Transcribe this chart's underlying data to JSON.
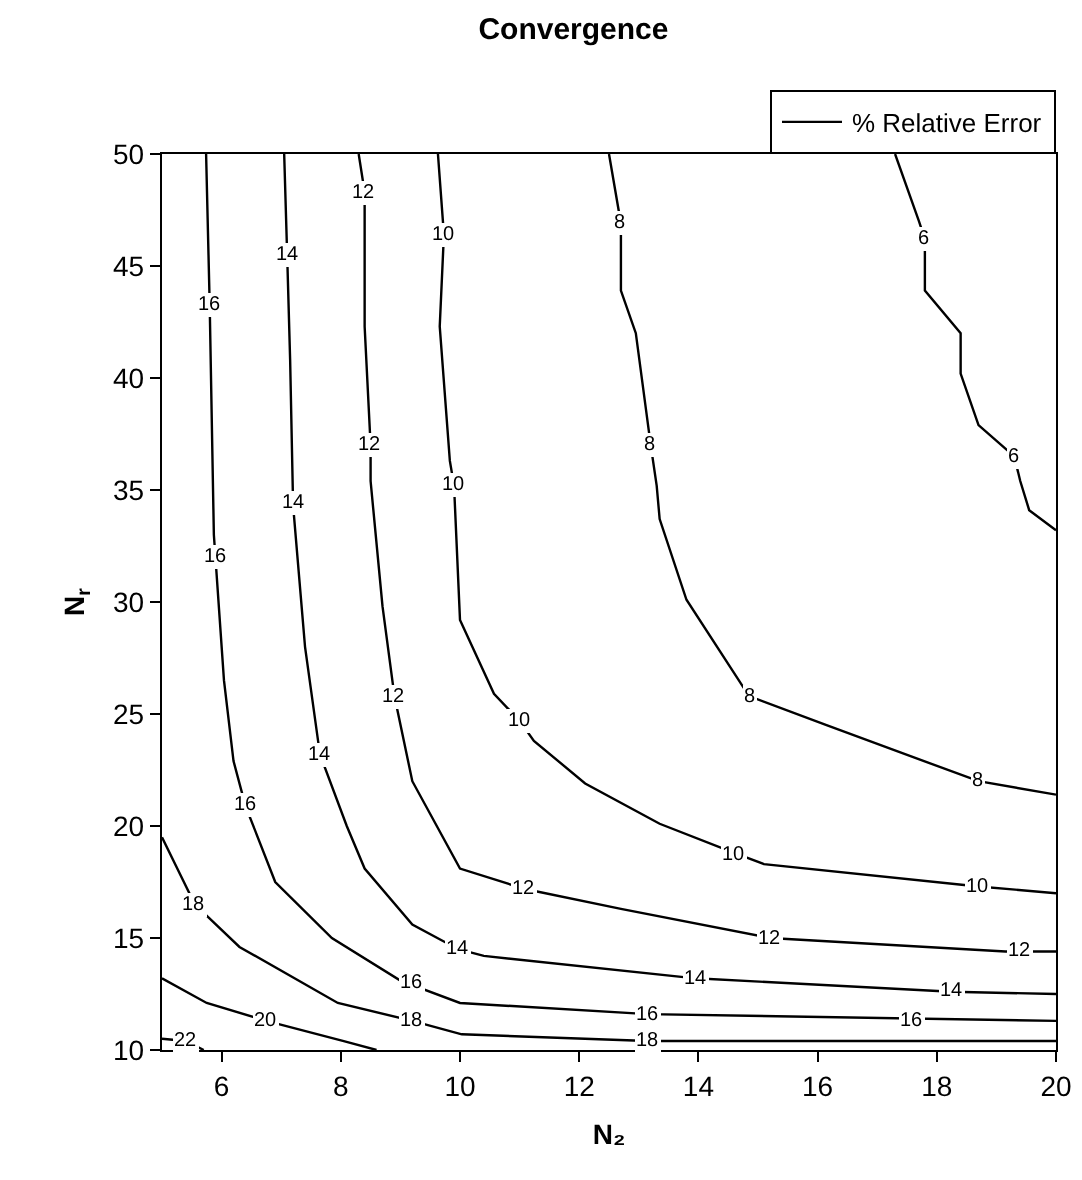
{
  "chart_data": {
    "type": "line",
    "title": "Convergence",
    "xlabel": "N₂",
    "ylabel": "N$_{r}$",
    "xlim": [
      5,
      20
    ],
    "ylim": [
      10,
      50
    ],
    "xticks": [
      6,
      8,
      10,
      12,
      14,
      16,
      18,
      20
    ],
    "yticks": [
      10,
      15,
      20,
      25,
      30,
      35,
      40,
      45,
      50
    ],
    "grid": false,
    "legend": "top right",
    "marker": "none",
    "line_style": "solid",
    "series": [
      {
        "name": "% Relative Error",
        "color": "#000000",
        "x": [
          5.74,
          5.8,
          5.87,
          6.04,
          6.2,
          6.4,
          6.9,
          7.85,
          9.0,
          10.0,
          13.15,
          20
        ],
        "values": [
          50,
          43.3,
          33,
          26.5,
          22.9,
          20.9,
          17.5,
          15,
          13.1,
          12.1,
          11.6,
          11.3
        ]
      },
      {
        "color": "#000000",
        "x": [
          7.05,
          7.1,
          7.15,
          7.2,
          7.4,
          7.65,
          8.1,
          8.4,
          9.2,
          9.97,
          10.4,
          13.95,
          18.25,
          20
        ],
        "values": [
          50,
          45.5,
          40.8,
          34.3,
          28,
          23.2,
          20,
          18.1,
          15.6,
          14.5,
          14.2,
          13.2,
          12.6,
          12.5
        ]
      },
      {
        "color": "#000000",
        "x": [
          8.3,
          8.4,
          8.4,
          8.5,
          8.5,
          8.7,
          8.9,
          9.2,
          10.0,
          11.07,
          12.7,
          15.2,
          19.15,
          20
        ],
        "values": [
          50,
          48.3,
          42.3,
          37,
          35.4,
          29.8,
          25.8,
          22,
          18.1,
          17.2,
          16.3,
          15,
          14.4,
          14.4
        ]
      },
      {
        "color": "#000000",
        "x": [
          9.63,
          9.73,
          9.66,
          9.83,
          9.9,
          10.0,
          10.57,
          11.0,
          11.24,
          12.1,
          13.35,
          14.6,
          15.1,
          18.7,
          20
        ],
        "values": [
          50,
          46.4,
          42.3,
          36.3,
          35.2,
          29.2,
          25.9,
          24.7,
          23.8,
          21.9,
          20.1,
          18.8,
          18.3,
          17.3,
          17.0
        ]
      },
      {
        "color": "#000000",
        "x": [
          12.5,
          12.7,
          12.7,
          12.95,
          13.2,
          13.3,
          13.35,
          13.8,
          14.85,
          16.15,
          18.7,
          20
        ],
        "values": [
          50,
          46.9,
          43.9,
          42,
          37,
          35.2,
          33.7,
          30.1,
          25.8,
          24.5,
          22,
          21.4
        ]
      },
      {
        "color": "#000000",
        "x": [
          17.3,
          17.7,
          17.8,
          17.8,
          18.4,
          18.4,
          18.7,
          19.3,
          19.4,
          19.55,
          20
        ],
        "values": [
          50,
          47,
          46.2,
          43.9,
          42,
          40.2,
          37.9,
          36.5,
          35.4,
          34.1,
          33.2
        ]
      },
      {
        "color": "#000000",
        "x": [
          5,
          5.55,
          6.3,
          7.95,
          9.2,
          10.03,
          13.15,
          20
        ],
        "values": [
          19.5,
          16.5,
          14.6,
          12.1,
          11.3,
          10.7,
          10.4,
          10.4
        ]
      },
      {
        "color": "#000000",
        "x": [
          5,
          5.75,
          6.75,
          8.05,
          8.6
        ],
        "values": [
          13.2,
          12.1,
          11.3,
          10.4,
          10
        ]
      },
      {
        "color": "#000000",
        "x": [
          5,
          5.4,
          5.7
        ],
        "values": [
          10.5,
          10.4,
          10
        ]
      }
    ],
    "annotations": [
      {
        "text": "16",
        "x": 5.8,
        "y": 43.3
      },
      {
        "text": "16",
        "x": 5.9,
        "y": 32
      },
      {
        "text": "16",
        "x": 6.4,
        "y": 20.9
      },
      {
        "text": "16",
        "x": 9.2,
        "y": 13.0
      },
      {
        "text": "16",
        "x": 13.15,
        "y": 11.6
      },
      {
        "text": "16",
        "x": 17.6,
        "y": 11.3
      },
      {
        "text": "14",
        "x": 7.1,
        "y": 45.5
      },
      {
        "text": "14",
        "x": 7.2,
        "y": 34.4
      },
      {
        "text": "14",
        "x": 7.65,
        "y": 23.2
      },
      {
        "text": "14",
        "x": 9.97,
        "y": 14.5
      },
      {
        "text": "14",
        "x": 13.95,
        "y": 13.2
      },
      {
        "text": "14",
        "x": 18.25,
        "y": 12.6
      },
      {
        "text": "12",
        "x": 8.4,
        "y": 48.3
      },
      {
        "text": "12",
        "x": 8.5,
        "y": 37
      },
      {
        "text": "12",
        "x": 8.9,
        "y": 25.8
      },
      {
        "text": "12",
        "x": 11.07,
        "y": 17.2
      },
      {
        "text": "12",
        "x": 15.2,
        "y": 15
      },
      {
        "text": "12",
        "x": 19.4,
        "y": 14.4
      },
      {
        "text": "10",
        "x": 9.73,
        "y": 46.4
      },
      {
        "text": "10",
        "x": 9.9,
        "y": 35.2
      },
      {
        "text": "10",
        "x": 11,
        "y": 24.7
      },
      {
        "text": "10",
        "x": 14.6,
        "y": 18.75
      },
      {
        "text": "10",
        "x": 18.7,
        "y": 17.3
      },
      {
        "text": "8",
        "x": 12.7,
        "y": 46.9
      },
      {
        "text": "8",
        "x": 13.2,
        "y": 37
      },
      {
        "text": "8",
        "x": 14.85,
        "y": 25.8
      },
      {
        "text": "8",
        "x": 18.7,
        "y": 22
      },
      {
        "text": "6",
        "x": 17.8,
        "y": 46.2
      },
      {
        "text": "6",
        "x": 19.3,
        "y": 36.5
      },
      {
        "text": "18",
        "x": 5.55,
        "y": 16.5
      },
      {
        "text": "18",
        "x": 9.2,
        "y": 11.3
      },
      {
        "text": "18",
        "x": 13.15,
        "y": 10.4
      },
      {
        "text": "20",
        "x": 6.75,
        "y": 11.3
      },
      {
        "text": "22",
        "x": 5.4,
        "y": 10.4
      }
    ]
  }
}
